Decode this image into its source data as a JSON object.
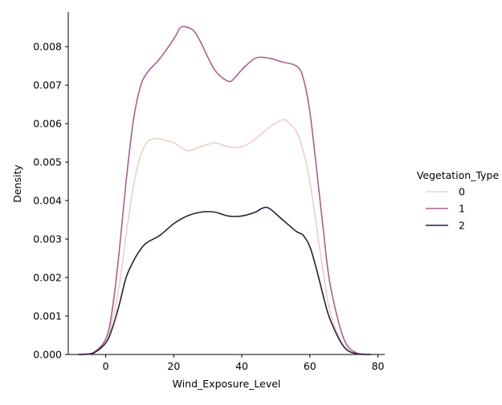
{
  "chart_data": {
    "type": "line",
    "xlabel": "Wind_Exposure_Level",
    "ylabel": "Density",
    "xlim": [
      -11,
      82
    ],
    "ylim": [
      0,
      0.0089
    ],
    "x_ticks": [
      0,
      20,
      40,
      60,
      80
    ],
    "x_tick_labels": [
      "0",
      "20",
      "40",
      "60",
      "80"
    ],
    "y_ticks": [
      0,
      0.001,
      0.002,
      0.003,
      0.004,
      0.005,
      0.006,
      0.007,
      0.008
    ],
    "y_tick_labels": [
      "0.000",
      "0.001",
      "0.002",
      "0.003",
      "0.004",
      "0.005",
      "0.006",
      "0.007",
      "0.008"
    ],
    "grid": false,
    "legend": {
      "title": "Vegetation_Type",
      "placement": "right",
      "entries": [
        "0",
        "1",
        "2"
      ]
    },
    "series": [
      {
        "name": "0",
        "color": "#ebcfcb",
        "x": [
          -8,
          -4,
          0,
          2,
          4,
          6,
          8,
          10,
          12,
          14,
          16,
          20,
          24,
          28,
          32,
          36,
          40,
          44,
          48,
          52,
          54,
          56,
          58,
          60,
          62,
          64,
          66,
          70,
          74,
          78
        ],
        "y": [
          0.0,
          2e-05,
          0.0003,
          0.0009,
          0.0018,
          0.0031,
          0.0043,
          0.0051,
          0.0055,
          0.0056,
          0.0056,
          0.0055,
          0.0053,
          0.0054,
          0.0055,
          0.0054,
          0.0054,
          0.0056,
          0.0059,
          0.0061,
          0.006,
          0.0058,
          0.0053,
          0.0045,
          0.0033,
          0.0021,
          0.0011,
          0.0002,
          2e-05,
          0.0
        ]
      },
      {
        "name": "1",
        "color": "#a8608f",
        "x": [
          -8,
          -4,
          0,
          2,
          4,
          6,
          8,
          10,
          12,
          16,
          20,
          22,
          24,
          26,
          28,
          32,
          36,
          38,
          40,
          44,
          48,
          52,
          56,
          58,
          60,
          62,
          64,
          66,
          70,
          74,
          78
        ],
        "y": [
          0.0,
          3e-05,
          0.0004,
          0.0012,
          0.0027,
          0.0045,
          0.006,
          0.0069,
          0.0073,
          0.0077,
          0.0082,
          0.0085,
          0.0085,
          0.0084,
          0.0081,
          0.0074,
          0.0071,
          0.0072,
          0.0074,
          0.0077,
          0.0077,
          0.0076,
          0.0075,
          0.0072,
          0.0063,
          0.0048,
          0.0032,
          0.0018,
          0.0004,
          3e-05,
          0.0
        ]
      },
      {
        "name": "2",
        "color": "#2a1d3b",
        "x": [
          -8,
          -4,
          0,
          2,
          4,
          6,
          8,
          10,
          12,
          16,
          20,
          24,
          28,
          32,
          36,
          40,
          44,
          46,
          48,
          52,
          56,
          58,
          60,
          62,
          64,
          66,
          70,
          74,
          78
        ],
        "y": [
          0.0,
          2e-05,
          0.0003,
          0.0007,
          0.0013,
          0.002,
          0.0024,
          0.0027,
          0.0029,
          0.0031,
          0.0034,
          0.0036,
          0.0037,
          0.0037,
          0.0036,
          0.0036,
          0.0037,
          0.0038,
          0.0038,
          0.0035,
          0.0032,
          0.0031,
          0.0028,
          0.0022,
          0.0015,
          0.0009,
          0.0002,
          1e-05,
          0.0
        ]
      }
    ]
  }
}
